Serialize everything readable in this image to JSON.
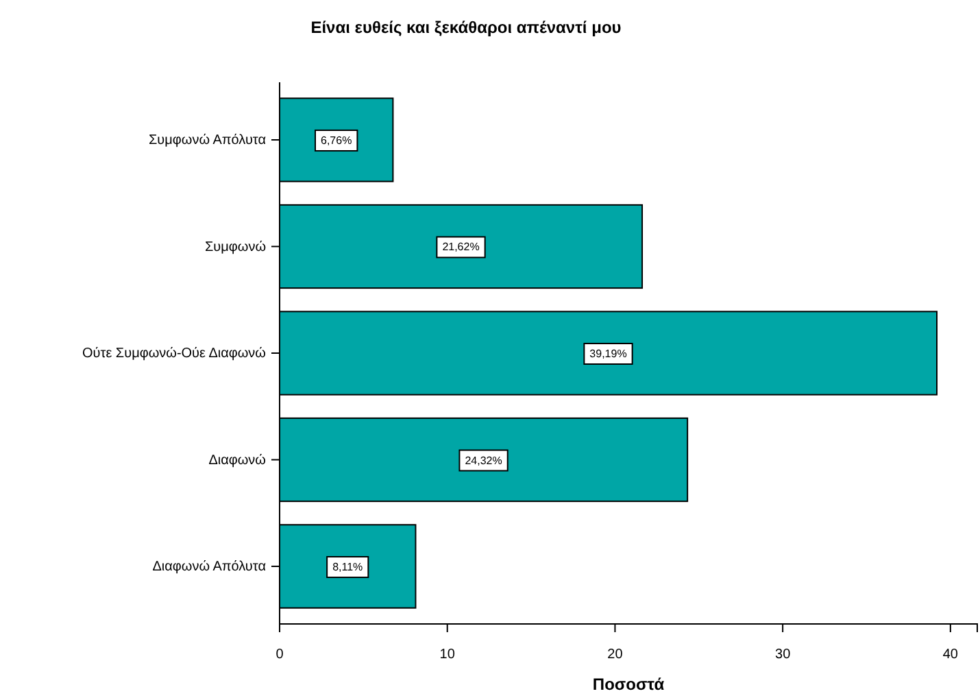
{
  "chart_data": {
    "type": "bar",
    "orientation": "horizontal",
    "title": "Είναι ευθείς και ξεκάθαροι απέναντί μου",
    "xlabel": "Ποσοστά",
    "categories": [
      "Συμφωνώ Απόλυτα",
      "Συμφωνώ",
      "Ούτε Συμφωνώ-Ούε Διαφωνώ",
      "Διαφωνώ",
      "Διαφωνώ Απόλυτα"
    ],
    "values": [
      6.76,
      21.62,
      39.19,
      24.32,
      8.11
    ],
    "value_labels": [
      "6,76%",
      "21,62%",
      "39,19%",
      "24,32%",
      "8,11%"
    ],
    "color": "#00a6a6",
    "xlim": [
      0,
      41.6
    ],
    "xticks": [
      0,
      10,
      20,
      30,
      40
    ],
    "grid": false
  }
}
